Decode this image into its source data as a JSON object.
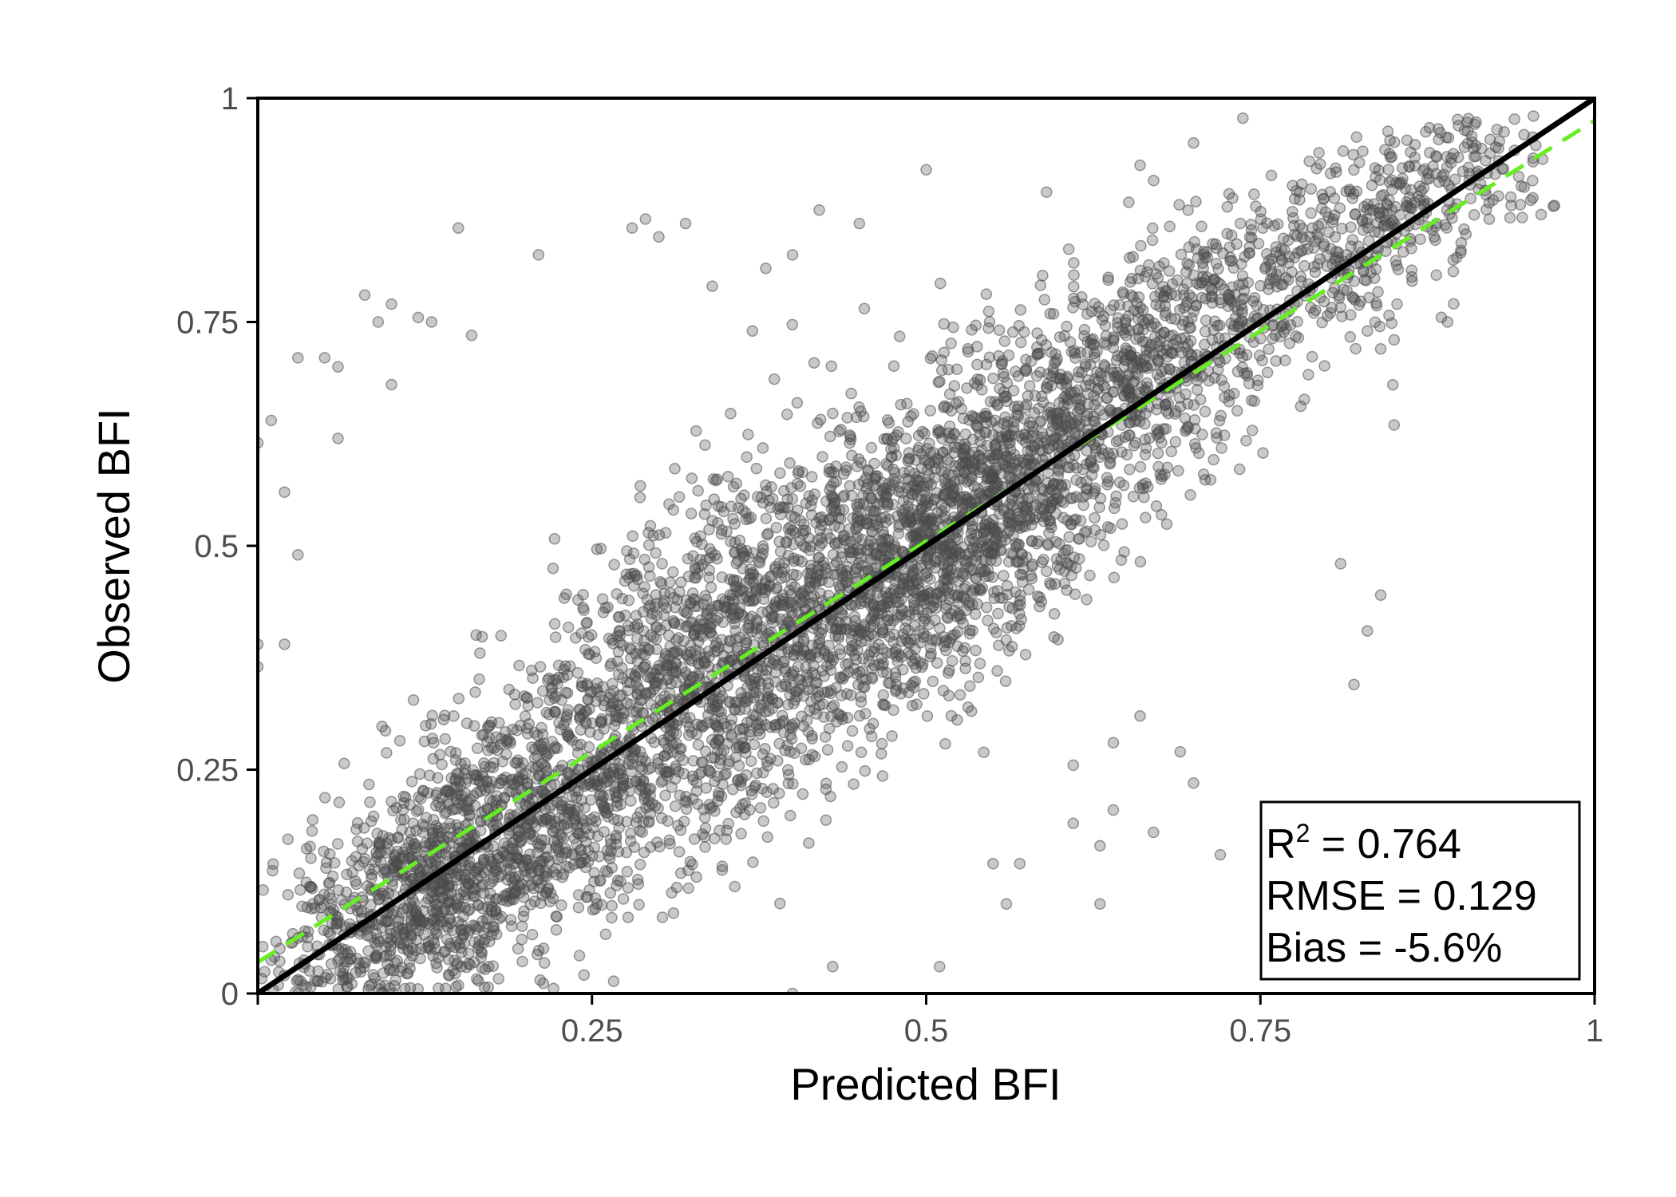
{
  "chart_data": {
    "type": "scatter",
    "title": "",
    "xlabel": "Predicted BFI",
    "ylabel": "Observed BFI",
    "xlim": [
      0,
      1
    ],
    "ylim": [
      0,
      1
    ],
    "x_ticks": [
      {
        "value": 0,
        "label": ""
      },
      {
        "value": 0.25,
        "label": "0.25"
      },
      {
        "value": 0.5,
        "label": "0.5"
      },
      {
        "value": 0.75,
        "label": "0.75"
      },
      {
        "value": 1,
        "label": "1"
      }
    ],
    "y_ticks": [
      {
        "value": 0,
        "label": "0"
      },
      {
        "value": 0.25,
        "label": "0.25"
      },
      {
        "value": 0.5,
        "label": "0.5"
      },
      {
        "value": 0.75,
        "label": "0.75"
      },
      {
        "value": 1,
        "label": "1"
      }
    ],
    "grid": false,
    "point_color": "#4d4d4d",
    "point_opacity": 0.3,
    "reference_line": {
      "description": "1:1 line",
      "from": [
        0,
        0
      ],
      "to": [
        1,
        1
      ],
      "color": "#000000",
      "style": "solid"
    },
    "fit_line": {
      "from": [
        0,
        0.035
      ],
      "to": [
        1,
        0.975
      ],
      "color": "#66ee22",
      "style": "dashed"
    },
    "stats": {
      "r2_label": "R",
      "r2_sup": "2",
      "r2_value": " = 0.764",
      "rmse": "RMSE = 0.129",
      "bias": "Bias = -5.6%"
    },
    "stats_placement": "bottom-right",
    "outliers": [
      {
        "x": 0.15,
        "y": 0.855
      },
      {
        "x": 0.5,
        "y": 0.92
      },
      {
        "x": 0.08,
        "y": 0.78
      },
      {
        "x": 0.09,
        "y": 0.75
      },
      {
        "x": 0.12,
        "y": 0.755
      },
      {
        "x": 0.13,
        "y": 0.75
      },
      {
        "x": 0.03,
        "y": 0.71
      },
      {
        "x": 0.05,
        "y": 0.71
      },
      {
        "x": 0.06,
        "y": 0.7
      },
      {
        "x": 0.1,
        "y": 0.77
      },
      {
        "x": 0.21,
        "y": 0.825
      },
      {
        "x": 0.29,
        "y": 0.865
      },
      {
        "x": 0.28,
        "y": 0.855
      },
      {
        "x": 0.3,
        "y": 0.845
      },
      {
        "x": 0.32,
        "y": 0.86
      },
      {
        "x": 0.38,
        "y": 0.81
      },
      {
        "x": 0.4,
        "y": 0.825
      },
      {
        "x": 0.42,
        "y": 0.875
      },
      {
        "x": 0.45,
        "y": 0.86
      },
      {
        "x": 0.16,
        "y": 0.735
      },
      {
        "x": 0.0,
        "y": 0.615
      },
      {
        "x": 0.01,
        "y": 0.64
      },
      {
        "x": 0.02,
        "y": 0.56
      },
      {
        "x": 0.03,
        "y": 0.49
      },
      {
        "x": 0.1,
        "y": 0.68
      },
      {
        "x": 0.06,
        "y": 0.62
      },
      {
        "x": 0.81,
        "y": 0.48
      },
      {
        "x": 0.82,
        "y": 0.345
      },
      {
        "x": 0.83,
        "y": 0.405
      },
      {
        "x": 0.84,
        "y": 0.445
      },
      {
        "x": 0.85,
        "y": 0.635
      },
      {
        "x": 0.66,
        "y": 0.31
      },
      {
        "x": 0.69,
        "y": 0.27
      },
      {
        "x": 0.7,
        "y": 0.235
      },
      {
        "x": 0.72,
        "y": 0.155
      },
      {
        "x": 0.67,
        "y": 0.18
      },
      {
        "x": 0.63,
        "y": 0.1
      },
      {
        "x": 0.57,
        "y": 0.145
      },
      {
        "x": 0.55,
        "y": 0.145
      },
      {
        "x": 0.51,
        "y": 0.03
      },
      {
        "x": 0.4,
        "y": 0.0
      },
      {
        "x": 0.43,
        "y": 0.03
      },
      {
        "x": 0.56,
        "y": 0.1
      },
      {
        "x": 0.61,
        "y": 0.19
      },
      {
        "x": 0.63,
        "y": 0.165
      },
      {
        "x": 0.64,
        "y": 0.205
      },
      {
        "x": 0.61,
        "y": 0.255
      },
      {
        "x": 0.64,
        "y": 0.28
      },
      {
        "x": 0.0,
        "y": 0.39
      },
      {
        "x": 0.02,
        "y": 0.39
      },
      {
        "x": 0.0,
        "y": 0.365
      },
      {
        "x": 0.62,
        "y": 0.44
      },
      {
        "x": 0.34,
        "y": 0.79
      },
      {
        "x": 0.37,
        "y": 0.74
      },
      {
        "x": 0.7,
        "y": 0.95
      },
      {
        "x": 0.59,
        "y": 0.895
      },
      {
        "x": 0.66,
        "y": 0.925
      },
      {
        "x": 0.97,
        "y": 0.88
      },
      {
        "x": 0.96,
        "y": 0.87
      },
      {
        "x": 0.9,
        "y": 0.83
      },
      {
        "x": 0.88,
        "y": 0.845
      },
      {
        "x": 0.85,
        "y": 0.73
      },
      {
        "x": 0.83,
        "y": 0.74
      },
      {
        "x": 0.84,
        "y": 0.72
      },
      {
        "x": 0.89,
        "y": 0.75
      },
      {
        "x": 0.79,
        "y": 0.76
      }
    ]
  }
}
